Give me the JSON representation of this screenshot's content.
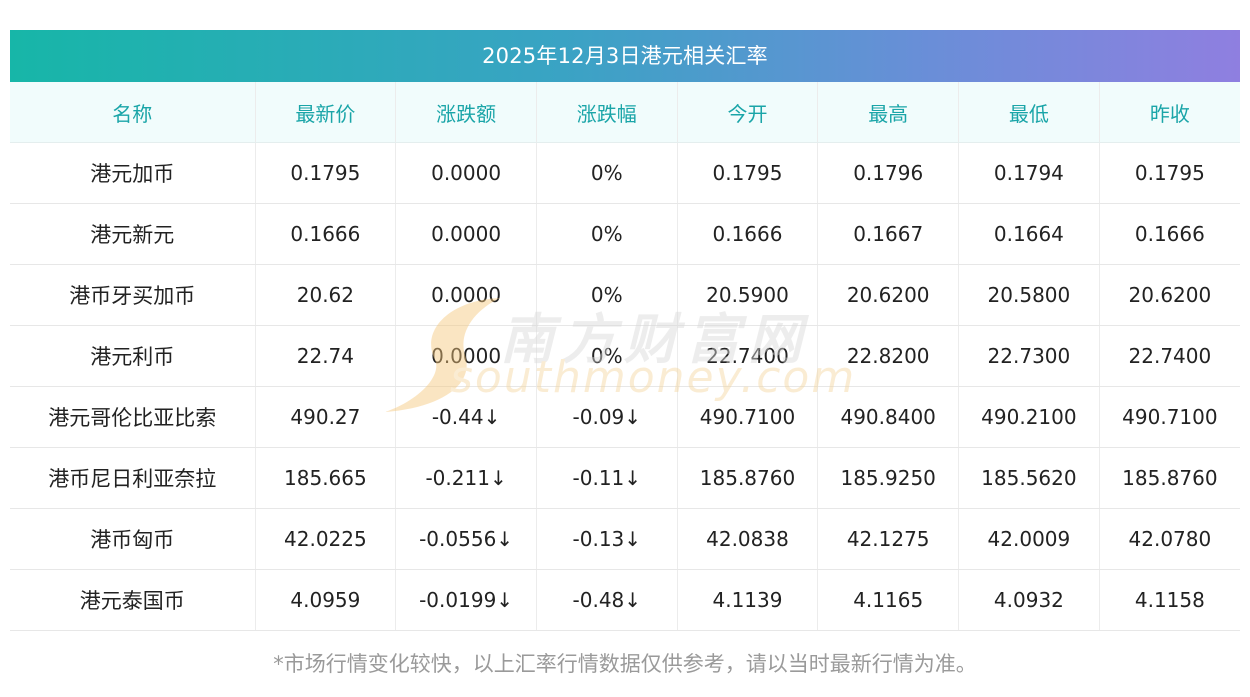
{
  "title": "2025年12月3日港元相关汇率",
  "columns": [
    "名称",
    "最新价",
    "涨跌额",
    "涨跌幅",
    "今开",
    "最高",
    "最低",
    "昨收"
  ],
  "rows": [
    {
      "name": "港元加币",
      "latest": "0.1795",
      "change": "0.0000",
      "change_pct": "0%",
      "open": "0.1795",
      "high": "0.1796",
      "low": "0.1794",
      "prev_close": "0.1795",
      "direction": "flat"
    },
    {
      "name": "港元新元",
      "latest": "0.1666",
      "change": "0.0000",
      "change_pct": "0%",
      "open": "0.1666",
      "high": "0.1667",
      "low": "0.1664",
      "prev_close": "0.1666",
      "direction": "flat"
    },
    {
      "name": "港币牙买加币",
      "latest": "20.62",
      "change": "0.0000",
      "change_pct": "0%",
      "open": "20.5900",
      "high": "20.6200",
      "low": "20.5800",
      "prev_close": "20.6200",
      "direction": "flat"
    },
    {
      "name": "港元利币",
      "latest": "22.74",
      "change": "0.0000",
      "change_pct": "0%",
      "open": "22.7400",
      "high": "22.8200",
      "low": "22.7300",
      "prev_close": "22.7400",
      "direction": "flat"
    },
    {
      "name": "港元哥伦比亚比索",
      "latest": "490.27",
      "change": "-0.44↓",
      "change_pct": "-0.09↓",
      "open": "490.7100",
      "high": "490.8400",
      "low": "490.2100",
      "prev_close": "490.7100",
      "direction": "down"
    },
    {
      "name": "港币尼日利亚奈拉",
      "latest": "185.665",
      "change": "-0.211↓",
      "change_pct": "-0.11↓",
      "open": "185.8760",
      "high": "185.9250",
      "low": "185.5620",
      "prev_close": "185.8760",
      "direction": "down"
    },
    {
      "name": "港币匈币",
      "latest": "42.0225",
      "change": "-0.0556↓",
      "change_pct": "-0.13↓",
      "open": "42.0838",
      "high": "42.1275",
      "low": "42.0009",
      "prev_close": "42.0780",
      "direction": "down"
    },
    {
      "name": "港元泰国币",
      "latest": "4.0959",
      "change": "-0.0199↓",
      "change_pct": "-0.48↓",
      "open": "4.1139",
      "high": "4.1165",
      "low": "4.0932",
      "prev_close": "4.1158",
      "direction": "down"
    }
  ],
  "footnote": "*市场行情变化较快，以上汇率行情数据仅供参考，请以当时最新行情为准。",
  "watermark": {
    "cn": "南方财富网",
    "en": "southmoney.com"
  },
  "colors": {
    "header_text": "#1aa5a8",
    "down": "#13891a",
    "text": "#222222"
  }
}
